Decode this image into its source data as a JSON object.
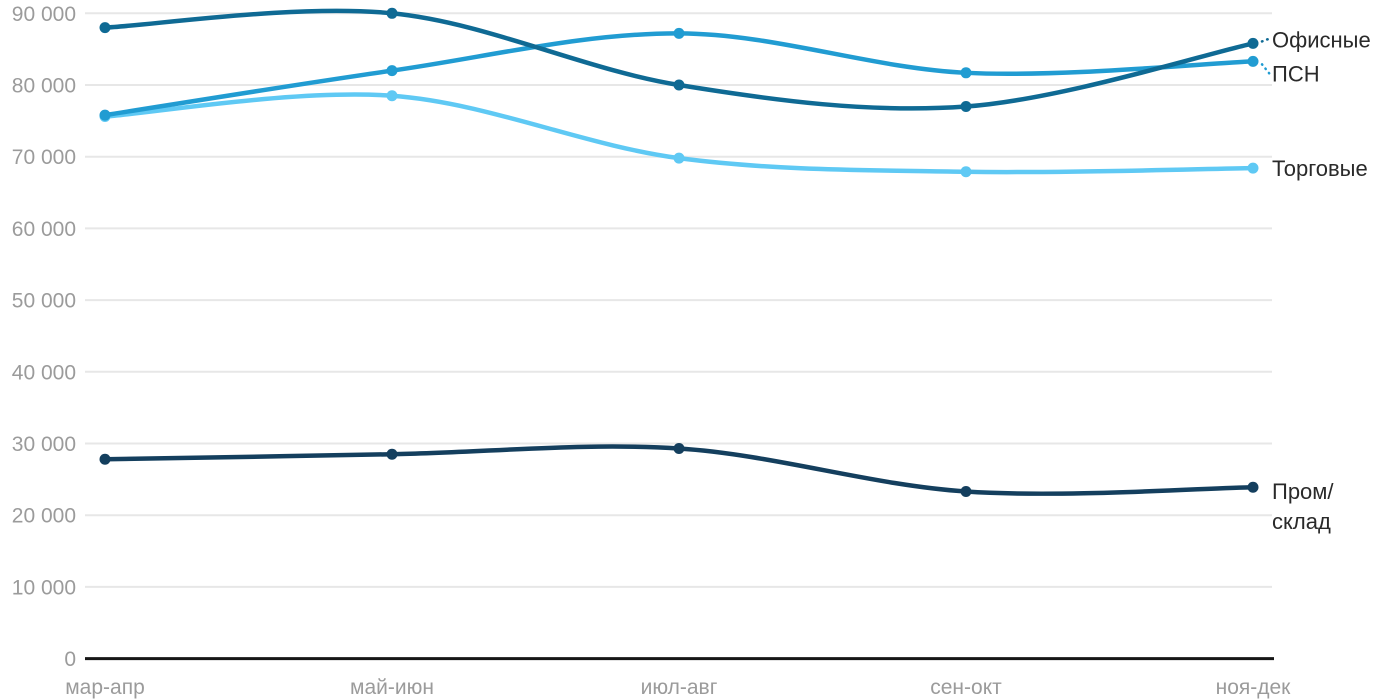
{
  "chart_data": {
    "type": "line",
    "title": "",
    "xlabel": "",
    "ylabel": "",
    "categories": [
      "мар-апр",
      "май-июн",
      "июл-авг",
      "сен-окт",
      "ноя-дек"
    ],
    "series": [
      {
        "id": "ofisnye",
        "name": "Офисные",
        "label_lines": [
          "Офисные"
        ],
        "color": "#0f6a94",
        "values": [
          88000,
          90000,
          80000,
          77000,
          85800
        ]
      },
      {
        "id": "psn",
        "name": "ПСН",
        "label_lines": [
          "ПСН"
        ],
        "color": "#219cd2",
        "values": [
          75800,
          82000,
          87200,
          81700,
          83300
        ]
      },
      {
        "id": "torgovye",
        "name": "Торговые",
        "label_lines": [
          "Торговые"
        ],
        "color": "#5fc9f4",
        "values": [
          75600,
          78500,
          69800,
          67900,
          68400
        ]
      },
      {
        "id": "prom-sklad",
        "name": "Пром/склад",
        "label_lines": [
          "Пром/",
          "склад"
        ],
        "color": "#143f5e",
        "values": [
          27800,
          28500,
          29300,
          23300,
          23900
        ]
      }
    ],
    "ylim": [
      0,
      90000
    ],
    "ytick_step": 10000,
    "ytick_labels": [
      "0",
      "10 000",
      "20 000",
      "30 000",
      "40 000",
      "50 000",
      "60 000",
      "70 000",
      "80 000",
      "90 000"
    ],
    "grid": true,
    "smooth": true,
    "legend_position": "right-of-line-end"
  },
  "styles": {
    "grid_color": "#e7e7e7",
    "axis_color": "#161616",
    "tick_text_color": "#9b9b9b",
    "legend_text_color": "#2a2a2a",
    "background": "#ffffff"
  }
}
